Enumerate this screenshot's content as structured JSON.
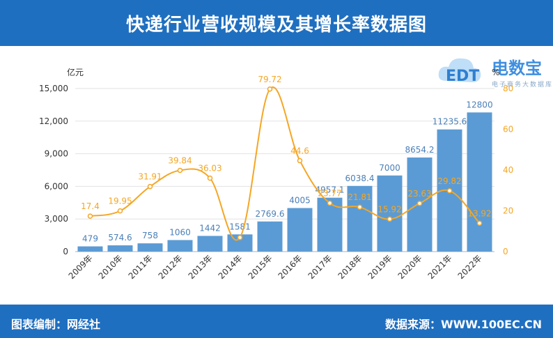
{
  "header": {
    "title": "快递行业营收规模及其增长率数据图"
  },
  "footer": {
    "left_label": "图表编制：网经社",
    "right_label": "数据来源：WWW.100EC.CN"
  },
  "logo": {
    "text": "电数宝",
    "sub": "电子商务大数据库",
    "mark": "EDT"
  },
  "chart_data": {
    "type": "bar",
    "categories": [
      "2009年",
      "2010年",
      "2011年",
      "2012年",
      "2013年",
      "2014年",
      "2015年",
      "2016年",
      "2017年",
      "2018年",
      "2019年",
      "2020年",
      "2021年",
      "2022年"
    ],
    "series": [
      {
        "type": "bar",
        "axis": "left",
        "values": [
          479,
          574.6,
          758,
          1060,
          1442,
          1581,
          2769.6,
          4005,
          4957.1,
          6038.4,
          7000,
          8654.2,
          11235.6,
          12800
        ],
        "labels": [
          "479",
          "574.6",
          "758",
          "1060",
          "1442",
          "1581",
          "2769.6",
          "4005",
          "4957.1",
          "6038.4",
          "7000",
          "8654.2",
          "11235.6",
          "12800"
        ],
        "color": "#5b9bd5"
      },
      {
        "type": "line",
        "axis": "right",
        "values": [
          17.4,
          19.95,
          31.91,
          39.84,
          36.03,
          6.9,
          79.72,
          44.6,
          23.77,
          21.81,
          15.92,
          23.63,
          29.82,
          13.92
        ],
        "labels": [
          "17.4",
          "19.95",
          "31.91",
          "39.84",
          "36.03",
          "",
          "79.72",
          "44.6",
          "23.77",
          "21.81",
          "15.92",
          "23.63",
          "29.82",
          "13.92"
        ],
        "color": "#f5a623"
      }
    ],
    "ylabel": "亿元",
    "ylabel_right": "%",
    "ylim": [
      0,
      15000
    ],
    "yticks": [
      "0",
      "3,000",
      "6,000",
      "9,000",
      "12,000",
      "15,000"
    ],
    "ylim_right": [
      0,
      80
    ],
    "yticks_right": [
      "0",
      "20",
      "40",
      "60",
      "80"
    ],
    "grid": true
  }
}
